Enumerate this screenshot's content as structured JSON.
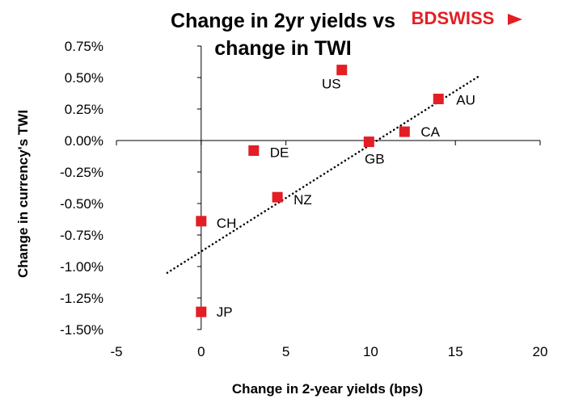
{
  "brand": {
    "text_bd": "BD",
    "text_swiss": "SWISS",
    "color": "#e31e24"
  },
  "chart_data": {
    "type": "scatter",
    "title_line1": "Change in 2yr yields vs",
    "title_line2": "change in TWI",
    "xlabel": "Change in 2-year yields (bps)",
    "ylabel": "Change in currency's  TWI",
    "xlim": [
      -5,
      20
    ],
    "ylim": [
      -1.5,
      0.75
    ],
    "x_ticks": [
      -5,
      0,
      5,
      10,
      15,
      20
    ],
    "x_tick_labels": [
      "-5",
      "0",
      "5",
      "10",
      "15",
      "20"
    ],
    "y_ticks": [
      0.75,
      0.5,
      0.25,
      0.0,
      -0.25,
      -0.5,
      -0.75,
      -1.0,
      -1.25,
      -1.5
    ],
    "y_tick_labels": [
      "0.75%",
      "0.50%",
      "0.25%",
      "0.00%",
      "-0.25%",
      "-0.50%",
      "-0.75%",
      "-1.00%",
      "-1.25%",
      "-1.50%"
    ],
    "marker_color": "#e31e24",
    "points": [
      {
        "label": "US",
        "x": 8.3,
        "y": 0.56
      },
      {
        "label": "AU",
        "x": 14.0,
        "y": 0.33
      },
      {
        "label": "CA",
        "x": 12.0,
        "y": 0.07
      },
      {
        "label": "GB",
        "x": 9.9,
        "y": -0.01
      },
      {
        "label": "DE",
        "x": 3.1,
        "y": -0.08
      },
      {
        "label": "NZ",
        "x": 4.5,
        "y": -0.45
      },
      {
        "label": "CH",
        "x": 0.0,
        "y": -0.64
      },
      {
        "label": "JP",
        "x": 0.0,
        "y": -1.36
      }
    ],
    "trendline": {
      "style": "dotted",
      "x": [
        -2,
        16.5
      ],
      "y": [
        -1.05,
        0.52
      ]
    },
    "grid": false,
    "legend": "none"
  }
}
